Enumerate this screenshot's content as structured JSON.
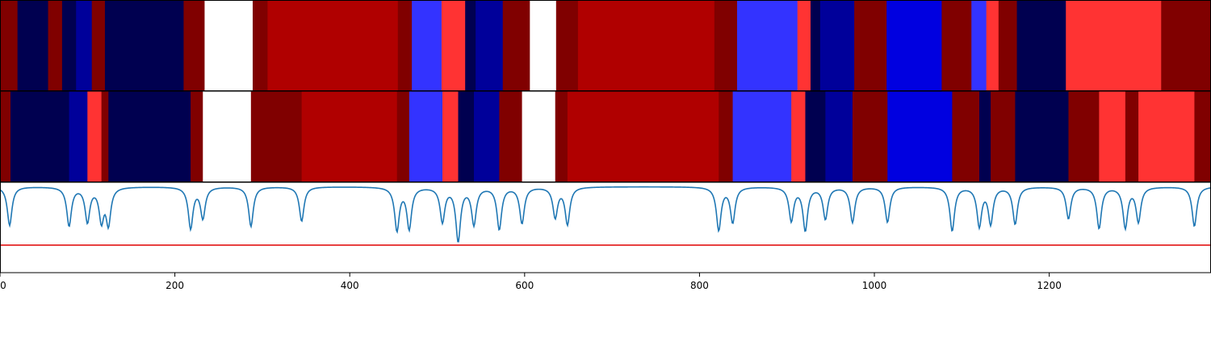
{
  "chart_data": {
    "type": "heatmap",
    "xlim": [
      0,
      1385
    ],
    "xticks": [
      "0",
      "200",
      "400",
      "600",
      "800",
      "1000",
      "1200"
    ],
    "xtick_values": [
      0,
      200,
      400,
      600,
      800,
      1000,
      1200
    ],
    "colors": {
      "dark_red": "#800000",
      "red": "#b00000",
      "light_red": "#ff3333",
      "navy": "#000050",
      "dark_blue": "#00009a",
      "blue": "#0000e0",
      "light_blue": "#3333ff",
      "white": "#ffffff",
      "line": "#1f77b4",
      "threshold": "#e00000"
    },
    "rows": [
      {
        "name": "",
        "segments": [
          [
            0,
            20,
            "dark_red"
          ],
          [
            20,
            55,
            "navy"
          ],
          [
            55,
            71,
            "dark_red"
          ],
          [
            71,
            87,
            "navy"
          ],
          [
            87,
            105,
            "dark_blue"
          ],
          [
            105,
            120,
            "dark_red"
          ],
          [
            120,
            210,
            "navy"
          ],
          [
            210,
            234,
            "dark_red"
          ],
          [
            234,
            289,
            "white"
          ],
          [
            289,
            306,
            "dark_red"
          ],
          [
            306,
            455,
            "red"
          ],
          [
            455,
            471,
            "dark_red"
          ],
          [
            471,
            505,
            "light_blue"
          ],
          [
            505,
            532,
            "light_red"
          ],
          [
            532,
            544,
            "navy"
          ],
          [
            544,
            575,
            "dark_blue"
          ],
          [
            575,
            606,
            "dark_red"
          ],
          [
            606,
            636,
            "white"
          ],
          [
            636,
            661,
            "dark_red"
          ],
          [
            661,
            817,
            "red"
          ],
          [
            817,
            843,
            "dark_red"
          ],
          [
            843,
            912,
            "light_blue"
          ],
          [
            912,
            927,
            "light_red"
          ],
          [
            927,
            938,
            "navy"
          ],
          [
            938,
            977,
            "dark_blue"
          ],
          [
            977,
            1014,
            "dark_red"
          ],
          [
            1014,
            1077,
            "blue"
          ],
          [
            1077,
            1111,
            "dark_red"
          ],
          [
            1111,
            1128,
            "light_blue"
          ],
          [
            1128,
            1142,
            "light_red"
          ],
          [
            1142,
            1163,
            "dark_red"
          ],
          [
            1163,
            1219,
            "navy"
          ],
          [
            1219,
            1328,
            "light_red"
          ],
          [
            1328,
            1385,
            "dark_red"
          ]
        ]
      },
      {
        "name": "",
        "segments": [
          [
            0,
            12,
            "dark_red"
          ],
          [
            12,
            79,
            "navy"
          ],
          [
            79,
            100,
            "dark_blue"
          ],
          [
            100,
            116,
            "light_red"
          ],
          [
            116,
            124,
            "dark_red"
          ],
          [
            124,
            218,
            "navy"
          ],
          [
            218,
            232,
            "dark_red"
          ],
          [
            232,
            287,
            "white"
          ],
          [
            287,
            345,
            "dark_red"
          ],
          [
            345,
            454,
            "red"
          ],
          [
            454,
            468,
            "dark_red"
          ],
          [
            468,
            506,
            "light_blue"
          ],
          [
            506,
            524,
            "light_red"
          ],
          [
            524,
            542,
            "navy"
          ],
          [
            542,
            571,
            "dark_blue"
          ],
          [
            571,
            597,
            "dark_red"
          ],
          [
            597,
            635,
            "white"
          ],
          [
            635,
            649,
            "dark_red"
          ],
          [
            649,
            822,
            "red"
          ],
          [
            822,
            838,
            "dark_red"
          ],
          [
            838,
            905,
            "light_blue"
          ],
          [
            905,
            921,
            "light_red"
          ],
          [
            921,
            944,
            "navy"
          ],
          [
            944,
            975,
            "dark_blue"
          ],
          [
            975,
            1015,
            "dark_red"
          ],
          [
            1015,
            1089,
            "blue"
          ],
          [
            1089,
            1120,
            "dark_red"
          ],
          [
            1120,
            1133,
            "navy"
          ],
          [
            1133,
            1161,
            "dark_red"
          ],
          [
            1161,
            1222,
            "navy"
          ],
          [
            1222,
            1257,
            "dark_red"
          ],
          [
            1257,
            1287,
            "light_red"
          ],
          [
            1287,
            1302,
            "dark_red"
          ],
          [
            1302,
            1366,
            "light_red"
          ],
          [
            1366,
            1385,
            "dark_red"
          ]
        ]
      }
    ],
    "signal": {
      "baseline": 0.0,
      "ylim": [
        -1.0,
        0.05
      ],
      "threshold": -0.68,
      "dips": [
        [
          11,
          0.45
        ],
        [
          79,
          0.45
        ],
        [
          100,
          0.4
        ],
        [
          116,
          0.38
        ],
        [
          124,
          0.42
        ],
        [
          218,
          0.48
        ],
        [
          232,
          0.36
        ],
        [
          287,
          0.46
        ],
        [
          345,
          0.4
        ],
        [
          454,
          0.5
        ],
        [
          468,
          0.48
        ],
        [
          506,
          0.4
        ],
        [
          524,
          0.62
        ],
        [
          542,
          0.43
        ],
        [
          571,
          0.49
        ],
        [
          597,
          0.42
        ],
        [
          635,
          0.35
        ],
        [
          649,
          0.43
        ],
        [
          822,
          0.5
        ],
        [
          838,
          0.41
        ],
        [
          905,
          0.39
        ],
        [
          921,
          0.5
        ],
        [
          944,
          0.37
        ],
        [
          975,
          0.41
        ],
        [
          1015,
          0.41
        ],
        [
          1089,
          0.51
        ],
        [
          1120,
          0.45
        ],
        [
          1133,
          0.42
        ],
        [
          1161,
          0.43
        ],
        [
          1222,
          0.37
        ],
        [
          1257,
          0.48
        ],
        [
          1287,
          0.47
        ],
        [
          1302,
          0.4
        ],
        [
          1366,
          0.46
        ]
      ]
    }
  }
}
